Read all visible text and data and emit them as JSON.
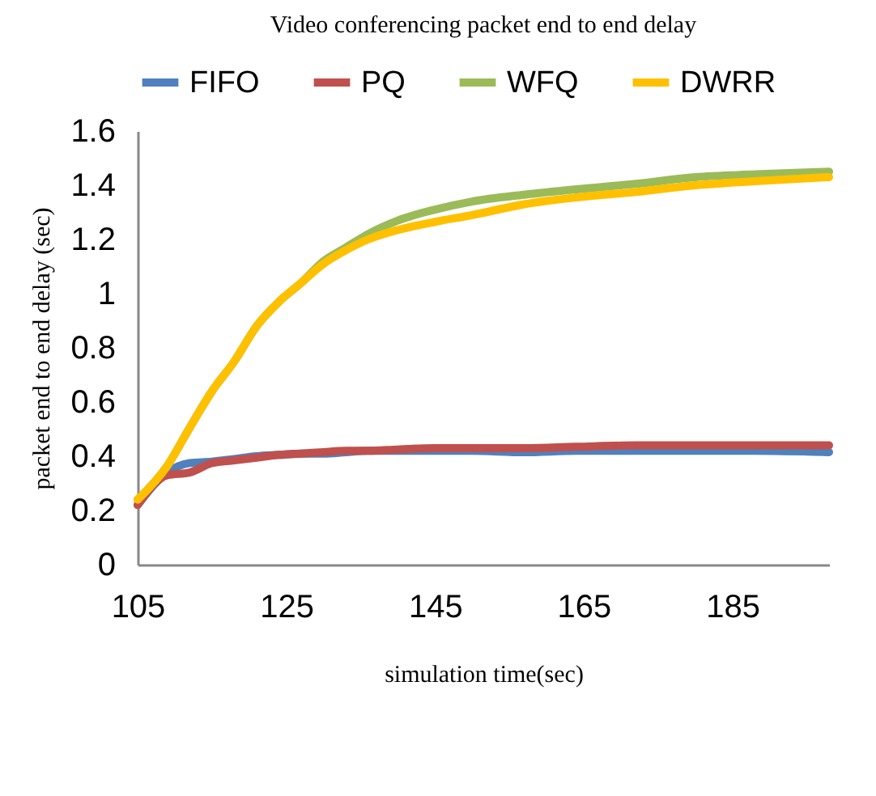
{
  "chart_data": {
    "type": "line",
    "title": "Video conferencing packet end to end delay",
    "xlabel": "simulation time(sec)",
    "ylabel": "packet end to end delay (sec)",
    "x": [
      105,
      109,
      112,
      115,
      118,
      121,
      124,
      127,
      130,
      133,
      136,
      140,
      145,
      150,
      157,
      164,
      172,
      180,
      188,
      198
    ],
    "series": [
      {
        "name": "FIFO",
        "color": "#4f81bd",
        "values": [
          0.22,
          0.34,
          0.375,
          0.38,
          0.39,
          0.4,
          0.405,
          0.41,
          0.41,
          0.415,
          0.42,
          0.42,
          0.42,
          0.42,
          0.415,
          0.42,
          0.42,
          0.42,
          0.42,
          0.415
        ]
      },
      {
        "name": "PQ",
        "color": "#c0504d",
        "values": [
          0.22,
          0.33,
          0.34,
          0.375,
          0.385,
          0.395,
          0.405,
          0.41,
          0.415,
          0.42,
          0.42,
          0.425,
          0.43,
          0.43,
          0.43,
          0.435,
          0.44,
          0.44,
          0.44,
          0.44
        ]
      },
      {
        "name": "WFQ",
        "color": "#9bbb59",
        "values": [
          0.24,
          0.365,
          0.505,
          0.64,
          0.75,
          0.88,
          0.97,
          1.04,
          1.12,
          1.17,
          1.22,
          1.27,
          1.31,
          1.34,
          1.365,
          1.385,
          1.405,
          1.43,
          1.44,
          1.45
        ]
      },
      {
        "name": "DWRR",
        "color": "#ffc000",
        "values": [
          0.24,
          0.365,
          0.505,
          0.64,
          0.75,
          0.88,
          0.97,
          1.04,
          1.11,
          1.16,
          1.2,
          1.235,
          1.265,
          1.29,
          1.33,
          1.355,
          1.375,
          1.4,
          1.415,
          1.43
        ]
      }
    ],
    "xlim": [
      105,
      198
    ],
    "xticks": [
      105,
      125,
      145,
      165,
      185
    ],
    "ylim": [
      0,
      1.6
    ],
    "yticks": [
      0,
      0.2,
      0.4,
      0.6,
      0.8,
      1,
      1.2,
      1.4,
      1.6
    ],
    "grid": false,
    "legend": "top",
    "marker": "none",
    "line_style": "solid"
  }
}
